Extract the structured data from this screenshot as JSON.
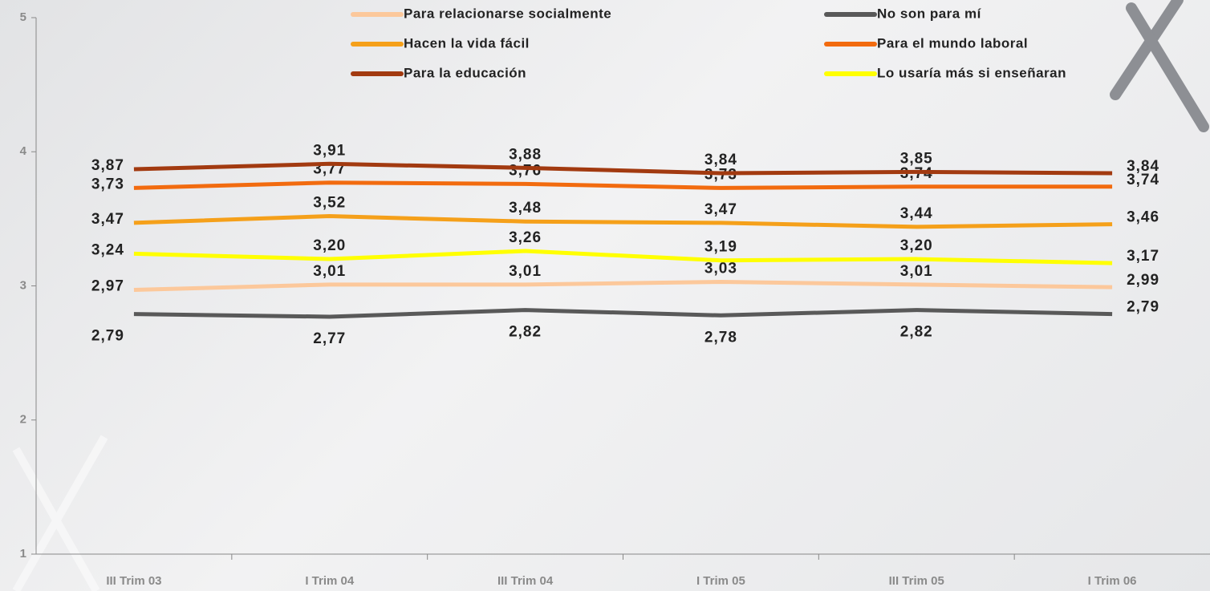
{
  "chart_data": {
    "type": "line",
    "categories": [
      "III Trim 03",
      "I Trim 04",
      "III Trim 04",
      "I Trim 05",
      "III Trim 05",
      "I Trim 06"
    ],
    "series": [
      {
        "name": "Para relacionarse socialmente",
        "color": "#fcc89b",
        "values": [
          2.97,
          3.01,
          3.01,
          3.03,
          3.01,
          2.99
        ],
        "value_labels": [
          "2,97",
          "3,01",
          "3,01",
          "3,03",
          "3,01",
          "2,99"
        ]
      },
      {
        "name": "No son para mí",
        "color": "#595959",
        "values": [
          2.79,
          2.77,
          2.82,
          2.78,
          2.82,
          2.79
        ],
        "value_labels": [
          "2,79",
          "2,77",
          "2,82",
          "2,78",
          "2,82",
          "2,79"
        ]
      },
      {
        "name": "Hacen la vida fácil",
        "color": "#f5a01a",
        "values": [
          3.47,
          3.52,
          3.48,
          3.47,
          3.44,
          3.46
        ],
        "value_labels": [
          "3,47",
          "3,52",
          "3,48",
          "3,47",
          "3,44",
          "3,46"
        ]
      },
      {
        "name": "Para el mundo laboral",
        "color": "#f26b0f",
        "values": [
          3.73,
          3.77,
          3.76,
          3.73,
          3.74,
          3.74
        ],
        "value_labels": [
          "3,73",
          "3,77",
          "3,76",
          "3,73",
          "3,74",
          "3,74"
        ]
      },
      {
        "name": "Para la educación",
        "color": "#a23a10",
        "values": [
          3.87,
          3.91,
          3.88,
          3.84,
          3.85,
          3.84
        ],
        "value_labels": [
          "3,87",
          "3,91",
          "3,88",
          "3,84",
          "3,85",
          "3,84"
        ]
      },
      {
        "name": "Lo usaría más si enseñaran",
        "color": "#ffff00",
        "values": [
          3.24,
          3.2,
          3.26,
          3.19,
          3.2,
          3.17
        ],
        "value_labels": [
          "3,24",
          "3,20",
          "3,26",
          "3,19",
          "3,20",
          "3,17"
        ]
      }
    ],
    "ylim": [
      1,
      5
    ],
    "yticks": [
      1,
      2,
      3,
      4,
      5
    ]
  }
}
